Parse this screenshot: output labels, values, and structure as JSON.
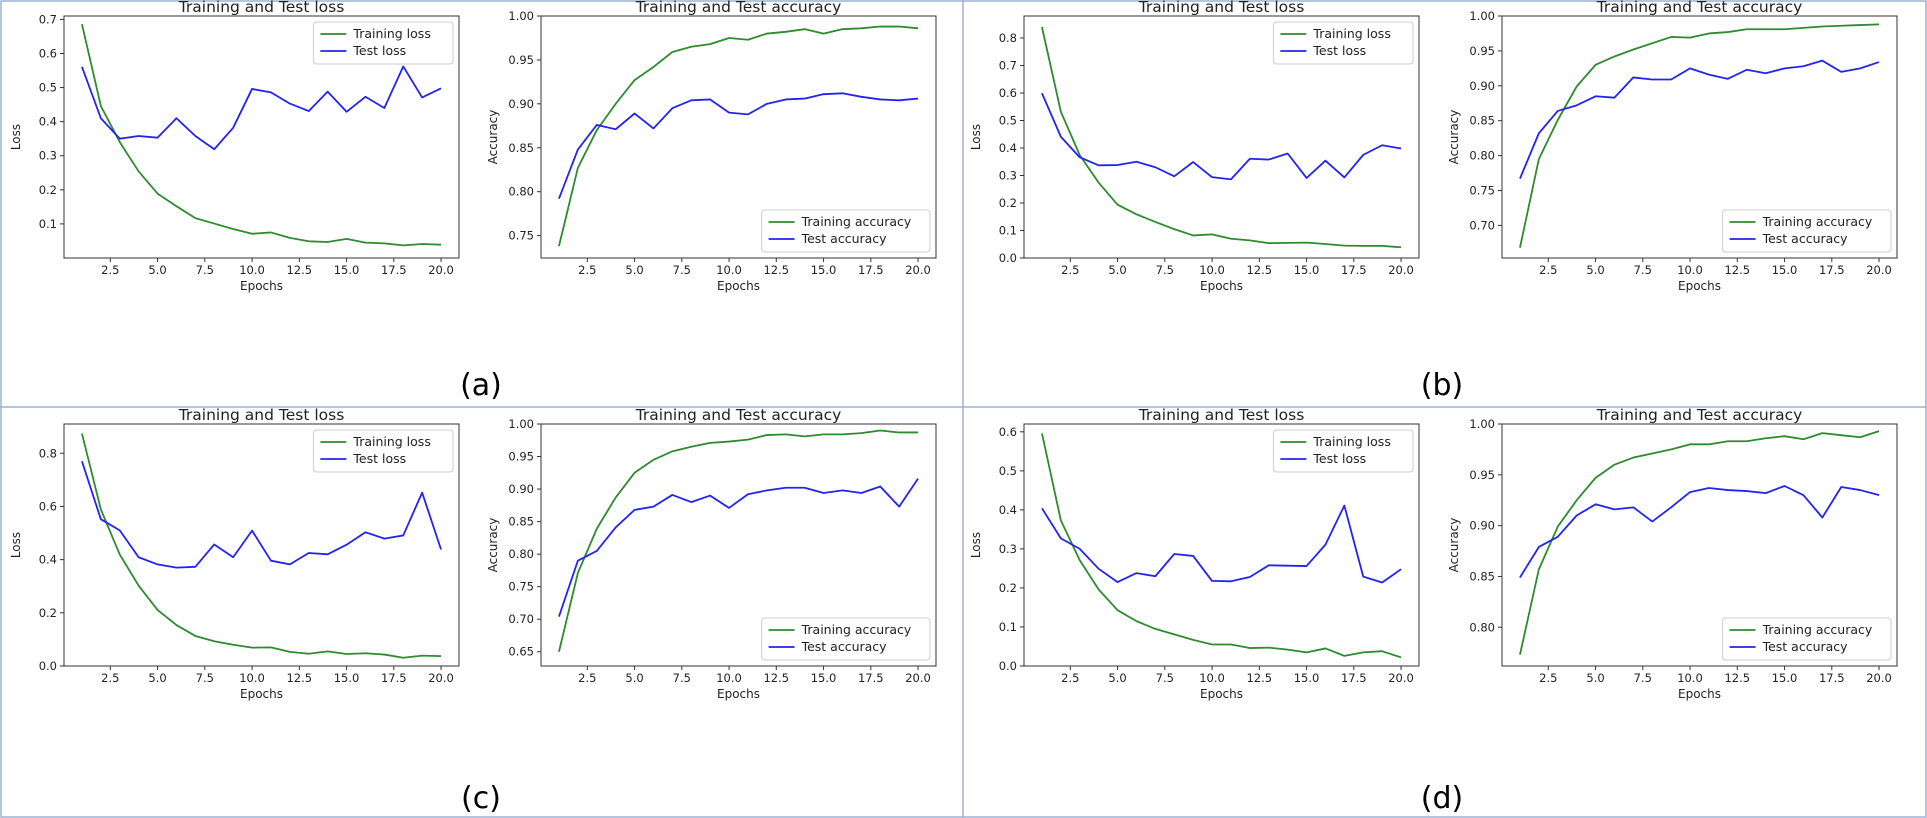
{
  "colors": {
    "training": "#2e8b2e",
    "test": "#2323f0",
    "divider": "#9bb3d4",
    "axes": "#333333"
  },
  "panels": [
    {
      "label": "(a)"
    },
    {
      "label": "(b)"
    },
    {
      "label": "(c)"
    },
    {
      "label": "(d)"
    }
  ],
  "chart_data": [
    {
      "panel": "(a)",
      "type": "line",
      "title": "Training and Test loss",
      "xlabel": "Epochs",
      "ylabel": "Loss",
      "xlim": [
        0.05,
        20.95
      ],
      "ylim": [
        0.0,
        0.71
      ],
      "xticks": [
        2.5,
        5.0,
        7.5,
        10.0,
        12.5,
        15.0,
        17.5,
        20.0
      ],
      "xtick_labels": [
        "2.5",
        "5.0",
        "7.5",
        "10.0",
        "12.5",
        "15.0",
        "17.5",
        "20.0"
      ],
      "yticks": [
        0.1,
        0.2,
        0.3,
        0.4,
        0.5,
        0.6,
        0.7
      ],
      "ytick_labels": [
        "0.1",
        "0.2",
        "0.3",
        "0.4",
        "0.5",
        "0.6",
        "0.7"
      ],
      "legend": "top-right",
      "x": [
        1,
        2,
        3,
        4,
        5,
        6,
        7,
        8,
        9,
        10,
        11,
        12,
        13,
        14,
        15,
        16,
        17,
        18,
        19,
        20
      ],
      "series": [
        {
          "name": "Training loss",
          "color": "training",
          "values": [
            0.686,
            0.446,
            0.34,
            0.254,
            0.189,
            0.152,
            0.117,
            0.101,
            0.085,
            0.071,
            0.075,
            0.059,
            0.049,
            0.047,
            0.056,
            0.045,
            0.043,
            0.037,
            0.041,
            0.039
          ]
        },
        {
          "name": "Test loss",
          "color": "test",
          "values": [
            0.561,
            0.41,
            0.35,
            0.358,
            0.353,
            0.41,
            0.358,
            0.319,
            0.382,
            0.496,
            0.486,
            0.453,
            0.431,
            0.488,
            0.429,
            0.473,
            0.44,
            0.562,
            0.471,
            0.498
          ]
        }
      ]
    },
    {
      "panel": "(a)",
      "type": "line",
      "title": "Training and Test accuracy",
      "xlabel": "Epochs",
      "ylabel": "Accuracy",
      "xlim": [
        0.05,
        20.95
      ],
      "ylim": [
        0.7245,
        1.0
      ],
      "xticks": [
        2.5,
        5.0,
        7.5,
        10.0,
        12.5,
        15.0,
        17.5,
        20.0
      ],
      "xtick_labels": [
        "2.5",
        "5.0",
        "7.5",
        "10.0",
        "12.5",
        "15.0",
        "17.5",
        "20.0"
      ],
      "yticks": [
        0.75,
        0.8,
        0.85,
        0.9,
        0.95,
        1.0
      ],
      "ytick_labels": [
        "0.75",
        "0.80",
        "0.85",
        "0.90",
        "0.95",
        "1.00"
      ],
      "legend": "bottom-right",
      "x": [
        1,
        2,
        3,
        4,
        5,
        6,
        7,
        8,
        9,
        10,
        11,
        12,
        13,
        14,
        15,
        16,
        17,
        18,
        19,
        20
      ],
      "series": [
        {
          "name": "Training accuracy",
          "color": "training",
          "values": [
            0.738,
            0.827,
            0.87,
            0.9,
            0.927,
            0.942,
            0.959,
            0.965,
            0.968,
            0.975,
            0.973,
            0.98,
            0.982,
            0.985,
            0.98,
            0.985,
            0.986,
            0.988,
            0.988,
            0.986
          ]
        },
        {
          "name": "Test accuracy",
          "color": "test",
          "values": [
            0.792,
            0.848,
            0.876,
            0.871,
            0.889,
            0.872,
            0.895,
            0.904,
            0.905,
            0.89,
            0.888,
            0.9,
            0.905,
            0.906,
            0.911,
            0.912,
            0.908,
            0.905,
            0.904,
            0.906
          ]
        }
      ]
    },
    {
      "panel": "(b)",
      "type": "line",
      "title": "Training and Test loss",
      "xlabel": "Epochs",
      "ylabel": "Loss",
      "xlim": [
        0.05,
        20.95
      ],
      "ylim": [
        0.0,
        0.88
      ],
      "xticks": [
        2.5,
        5.0,
        7.5,
        10.0,
        12.5,
        15.0,
        17.5,
        20.0
      ],
      "xtick_labels": [
        "2.5",
        "5.0",
        "7.5",
        "10.0",
        "12.5",
        "15.0",
        "17.5",
        "20.0"
      ],
      "yticks": [
        0.0,
        0.1,
        0.2,
        0.3,
        0.4,
        0.5,
        0.6,
        0.7,
        0.8
      ],
      "ytick_labels": [
        "0.0",
        "0.1",
        "0.2",
        "0.3",
        "0.4",
        "0.5",
        "0.6",
        "0.7",
        "0.8"
      ],
      "legend": "top-right",
      "x": [
        1,
        2,
        3,
        4,
        5,
        6,
        7,
        8,
        9,
        10,
        11,
        12,
        13,
        14,
        15,
        16,
        17,
        18,
        19,
        20
      ],
      "series": [
        {
          "name": "Training loss",
          "color": "training",
          "values": [
            0.84,
            0.532,
            0.374,
            0.274,
            0.194,
            0.159,
            0.131,
            0.105,
            0.082,
            0.086,
            0.07,
            0.064,
            0.054,
            0.055,
            0.056,
            0.051,
            0.045,
            0.044,
            0.044,
            0.039
          ]
        },
        {
          "name": "Test loss",
          "color": "test",
          "values": [
            0.599,
            0.441,
            0.366,
            0.337,
            0.338,
            0.35,
            0.33,
            0.297,
            0.349,
            0.294,
            0.286,
            0.361,
            0.358,
            0.38,
            0.291,
            0.354,
            0.293,
            0.375,
            0.41,
            0.398
          ]
        }
      ]
    },
    {
      "panel": "(b)",
      "type": "line",
      "title": "Training and Test accuracy",
      "xlabel": "Epochs",
      "ylabel": "Accuracy",
      "xlim": [
        0.05,
        20.95
      ],
      "ylim": [
        0.6533,
        1.0
      ],
      "xticks": [
        2.5,
        5.0,
        7.5,
        10.0,
        12.5,
        15.0,
        17.5,
        20.0
      ],
      "xtick_labels": [
        "2.5",
        "5.0",
        "7.5",
        "10.0",
        "12.5",
        "15.0",
        "17.5",
        "20.0"
      ],
      "yticks": [
        0.7,
        0.75,
        0.8,
        0.85,
        0.9,
        0.95,
        1.0
      ],
      "ytick_labels": [
        "0.70",
        "0.75",
        "0.80",
        "0.85",
        "0.90",
        "0.95",
        "1.00"
      ],
      "legend": "bottom-right",
      "x": [
        1,
        2,
        3,
        4,
        5,
        6,
        7,
        8,
        9,
        10,
        11,
        12,
        13,
        14,
        15,
        16,
        17,
        18,
        19,
        20
      ],
      "series": [
        {
          "name": "Training accuracy",
          "color": "training",
          "values": [
            0.668,
            0.795,
            0.851,
            0.899,
            0.93,
            0.942,
            0.952,
            0.961,
            0.97,
            0.969,
            0.975,
            0.977,
            0.981,
            0.981,
            0.981,
            0.983,
            0.985,
            0.986,
            0.987,
            0.988
          ]
        },
        {
          "name": "Test accuracy",
          "color": "test",
          "values": [
            0.767,
            0.832,
            0.864,
            0.872,
            0.885,
            0.883,
            0.912,
            0.909,
            0.909,
            0.925,
            0.916,
            0.91,
            0.923,
            0.918,
            0.925,
            0.928,
            0.936,
            0.92,
            0.925,
            0.934
          ]
        }
      ]
    },
    {
      "panel": "(c)",
      "type": "line",
      "title": "Training and Test loss",
      "xlabel": "Epochs",
      "ylabel": "Loss",
      "xlim": [
        0.05,
        20.95
      ],
      "ylim": [
        0.0,
        0.91
      ],
      "xticks": [
        2.5,
        5.0,
        7.5,
        10.0,
        12.5,
        15.0,
        17.5,
        20.0
      ],
      "xtick_labels": [
        "2.5",
        "5.0",
        "7.5",
        "10.0",
        "12.5",
        "15.0",
        "17.5",
        "20.0"
      ],
      "yticks": [
        0.0,
        0.2,
        0.4,
        0.6,
        0.8
      ],
      "ytick_labels": [
        "0.0",
        "0.2",
        "0.4",
        "0.6",
        "0.8"
      ],
      "legend": "top-right",
      "x": [
        1,
        2,
        3,
        4,
        5,
        6,
        7,
        8,
        9,
        10,
        11,
        12,
        13,
        14,
        15,
        16,
        17,
        18,
        19,
        20
      ],
      "series": [
        {
          "name": "Training loss",
          "color": "training",
          "values": [
            0.874,
            0.589,
            0.419,
            0.302,
            0.211,
            0.154,
            0.113,
            0.093,
            0.08,
            0.069,
            0.07,
            0.053,
            0.046,
            0.055,
            0.045,
            0.048,
            0.043,
            0.031,
            0.039,
            0.037
          ]
        },
        {
          "name": "Test loss",
          "color": "test",
          "values": [
            0.77,
            0.552,
            0.51,
            0.409,
            0.382,
            0.37,
            0.373,
            0.457,
            0.409,
            0.509,
            0.396,
            0.382,
            0.425,
            0.42,
            0.456,
            0.503,
            0.479,
            0.491,
            0.652,
            0.438
          ]
        }
      ]
    },
    {
      "panel": "(c)",
      "type": "line",
      "title": "Training and Test accuracy",
      "xlabel": "Epochs",
      "ylabel": "Accuracy",
      "xlim": [
        0.05,
        20.95
      ],
      "ylim": [
        0.6281,
        1.0
      ],
      "xticks": [
        2.5,
        5.0,
        7.5,
        10.0,
        12.5,
        15.0,
        17.5,
        20.0
      ],
      "xtick_labels": [
        "2.5",
        "5.0",
        "7.5",
        "10.0",
        "12.5",
        "15.0",
        "17.5",
        "20.0"
      ],
      "yticks": [
        0.65,
        0.7,
        0.75,
        0.8,
        0.85,
        0.9,
        0.95,
        1.0
      ],
      "ytick_labels": [
        "0.65",
        "0.70",
        "0.75",
        "0.80",
        "0.85",
        "0.90",
        "0.95",
        "1.00"
      ],
      "legend": "bottom-right",
      "x": [
        1,
        2,
        3,
        4,
        5,
        6,
        7,
        8,
        9,
        10,
        11,
        12,
        13,
        14,
        15,
        16,
        17,
        18,
        19,
        20
      ],
      "series": [
        {
          "name": "Training accuracy",
          "color": "training",
          "values": [
            0.65,
            0.771,
            0.839,
            0.887,
            0.925,
            0.945,
            0.958,
            0.965,
            0.971,
            0.973,
            0.976,
            0.983,
            0.984,
            0.981,
            0.984,
            0.984,
            0.986,
            0.99,
            0.987,
            0.987
          ]
        },
        {
          "name": "Test accuracy",
          "color": "test",
          "values": [
            0.704,
            0.79,
            0.805,
            0.841,
            0.868,
            0.873,
            0.891,
            0.88,
            0.89,
            0.871,
            0.892,
            0.898,
            0.902,
            0.902,
            0.894,
            0.898,
            0.894,
            0.904,
            0.873,
            0.916
          ]
        }
      ]
    },
    {
      "panel": "(d)",
      "type": "line",
      "title": "Training and Test loss",
      "xlabel": "Epochs",
      "ylabel": "Loss",
      "xlim": [
        0.05,
        20.95
      ],
      "ylim": [
        0.0,
        0.62
      ],
      "xticks": [
        2.5,
        5.0,
        7.5,
        10.0,
        12.5,
        15.0,
        17.5,
        20.0
      ],
      "xtick_labels": [
        "2.5",
        "5.0",
        "7.5",
        "10.0",
        "12.5",
        "15.0",
        "17.5",
        "20.0"
      ],
      "yticks": [
        0.0,
        0.1,
        0.2,
        0.3,
        0.4,
        0.5,
        0.6
      ],
      "ytick_labels": [
        "0.0",
        "0.1",
        "0.2",
        "0.3",
        "0.4",
        "0.5",
        "0.6"
      ],
      "legend": "top-right",
      "x": [
        1,
        2,
        3,
        4,
        5,
        6,
        7,
        8,
        9,
        10,
        11,
        12,
        13,
        14,
        15,
        16,
        17,
        18,
        19,
        20
      ],
      "series": [
        {
          "name": "Training loss",
          "color": "training",
          "values": [
            0.596,
            0.373,
            0.271,
            0.196,
            0.143,
            0.115,
            0.095,
            0.081,
            0.067,
            0.055,
            0.055,
            0.046,
            0.047,
            0.042,
            0.035,
            0.045,
            0.026,
            0.035,
            0.038,
            0.022
          ]
        },
        {
          "name": "Test loss",
          "color": "test",
          "values": [
            0.404,
            0.327,
            0.3,
            0.249,
            0.215,
            0.238,
            0.23,
            0.287,
            0.282,
            0.218,
            0.217,
            0.228,
            0.258,
            0.257,
            0.256,
            0.311,
            0.411,
            0.229,
            0.214,
            0.248
          ]
        }
      ]
    },
    {
      "panel": "(d)",
      "type": "line",
      "title": "Training and Test accuracy",
      "xlabel": "Epochs",
      "ylabel": "Accuracy",
      "xlim": [
        0.05,
        20.95
      ],
      "ylim": [
        0.7619,
        1.0
      ],
      "xticks": [
        2.5,
        5.0,
        7.5,
        10.0,
        12.5,
        15.0,
        17.5,
        20.0
      ],
      "xtick_labels": [
        "2.5",
        "5.0",
        "7.5",
        "10.0",
        "12.5",
        "15.0",
        "17.5",
        "20.0"
      ],
      "yticks": [
        0.8,
        0.85,
        0.9,
        0.95,
        1.0
      ],
      "ytick_labels": [
        "0.80",
        "0.85",
        "0.90",
        "0.95",
        "1.00"
      ],
      "legend": "bottom-right",
      "x": [
        1,
        2,
        3,
        4,
        5,
        6,
        7,
        8,
        9,
        10,
        11,
        12,
        13,
        14,
        15,
        16,
        17,
        18,
        19,
        20
      ],
      "series": [
        {
          "name": "Training accuracy",
          "color": "training",
          "values": [
            0.773,
            0.857,
            0.899,
            0.925,
            0.947,
            0.96,
            0.967,
            0.971,
            0.975,
            0.98,
            0.98,
            0.983,
            0.983,
            0.986,
            0.988,
            0.985,
            0.991,
            0.989,
            0.987,
            0.993
          ]
        },
        {
          "name": "Test accuracy",
          "color": "test",
          "values": [
            0.849,
            0.879,
            0.889,
            0.91,
            0.921,
            0.916,
            0.918,
            0.904,
            0.918,
            0.933,
            0.937,
            0.935,
            0.934,
            0.932,
            0.939,
            0.93,
            0.908,
            0.938,
            0.935,
            0.93
          ]
        }
      ]
    }
  ]
}
